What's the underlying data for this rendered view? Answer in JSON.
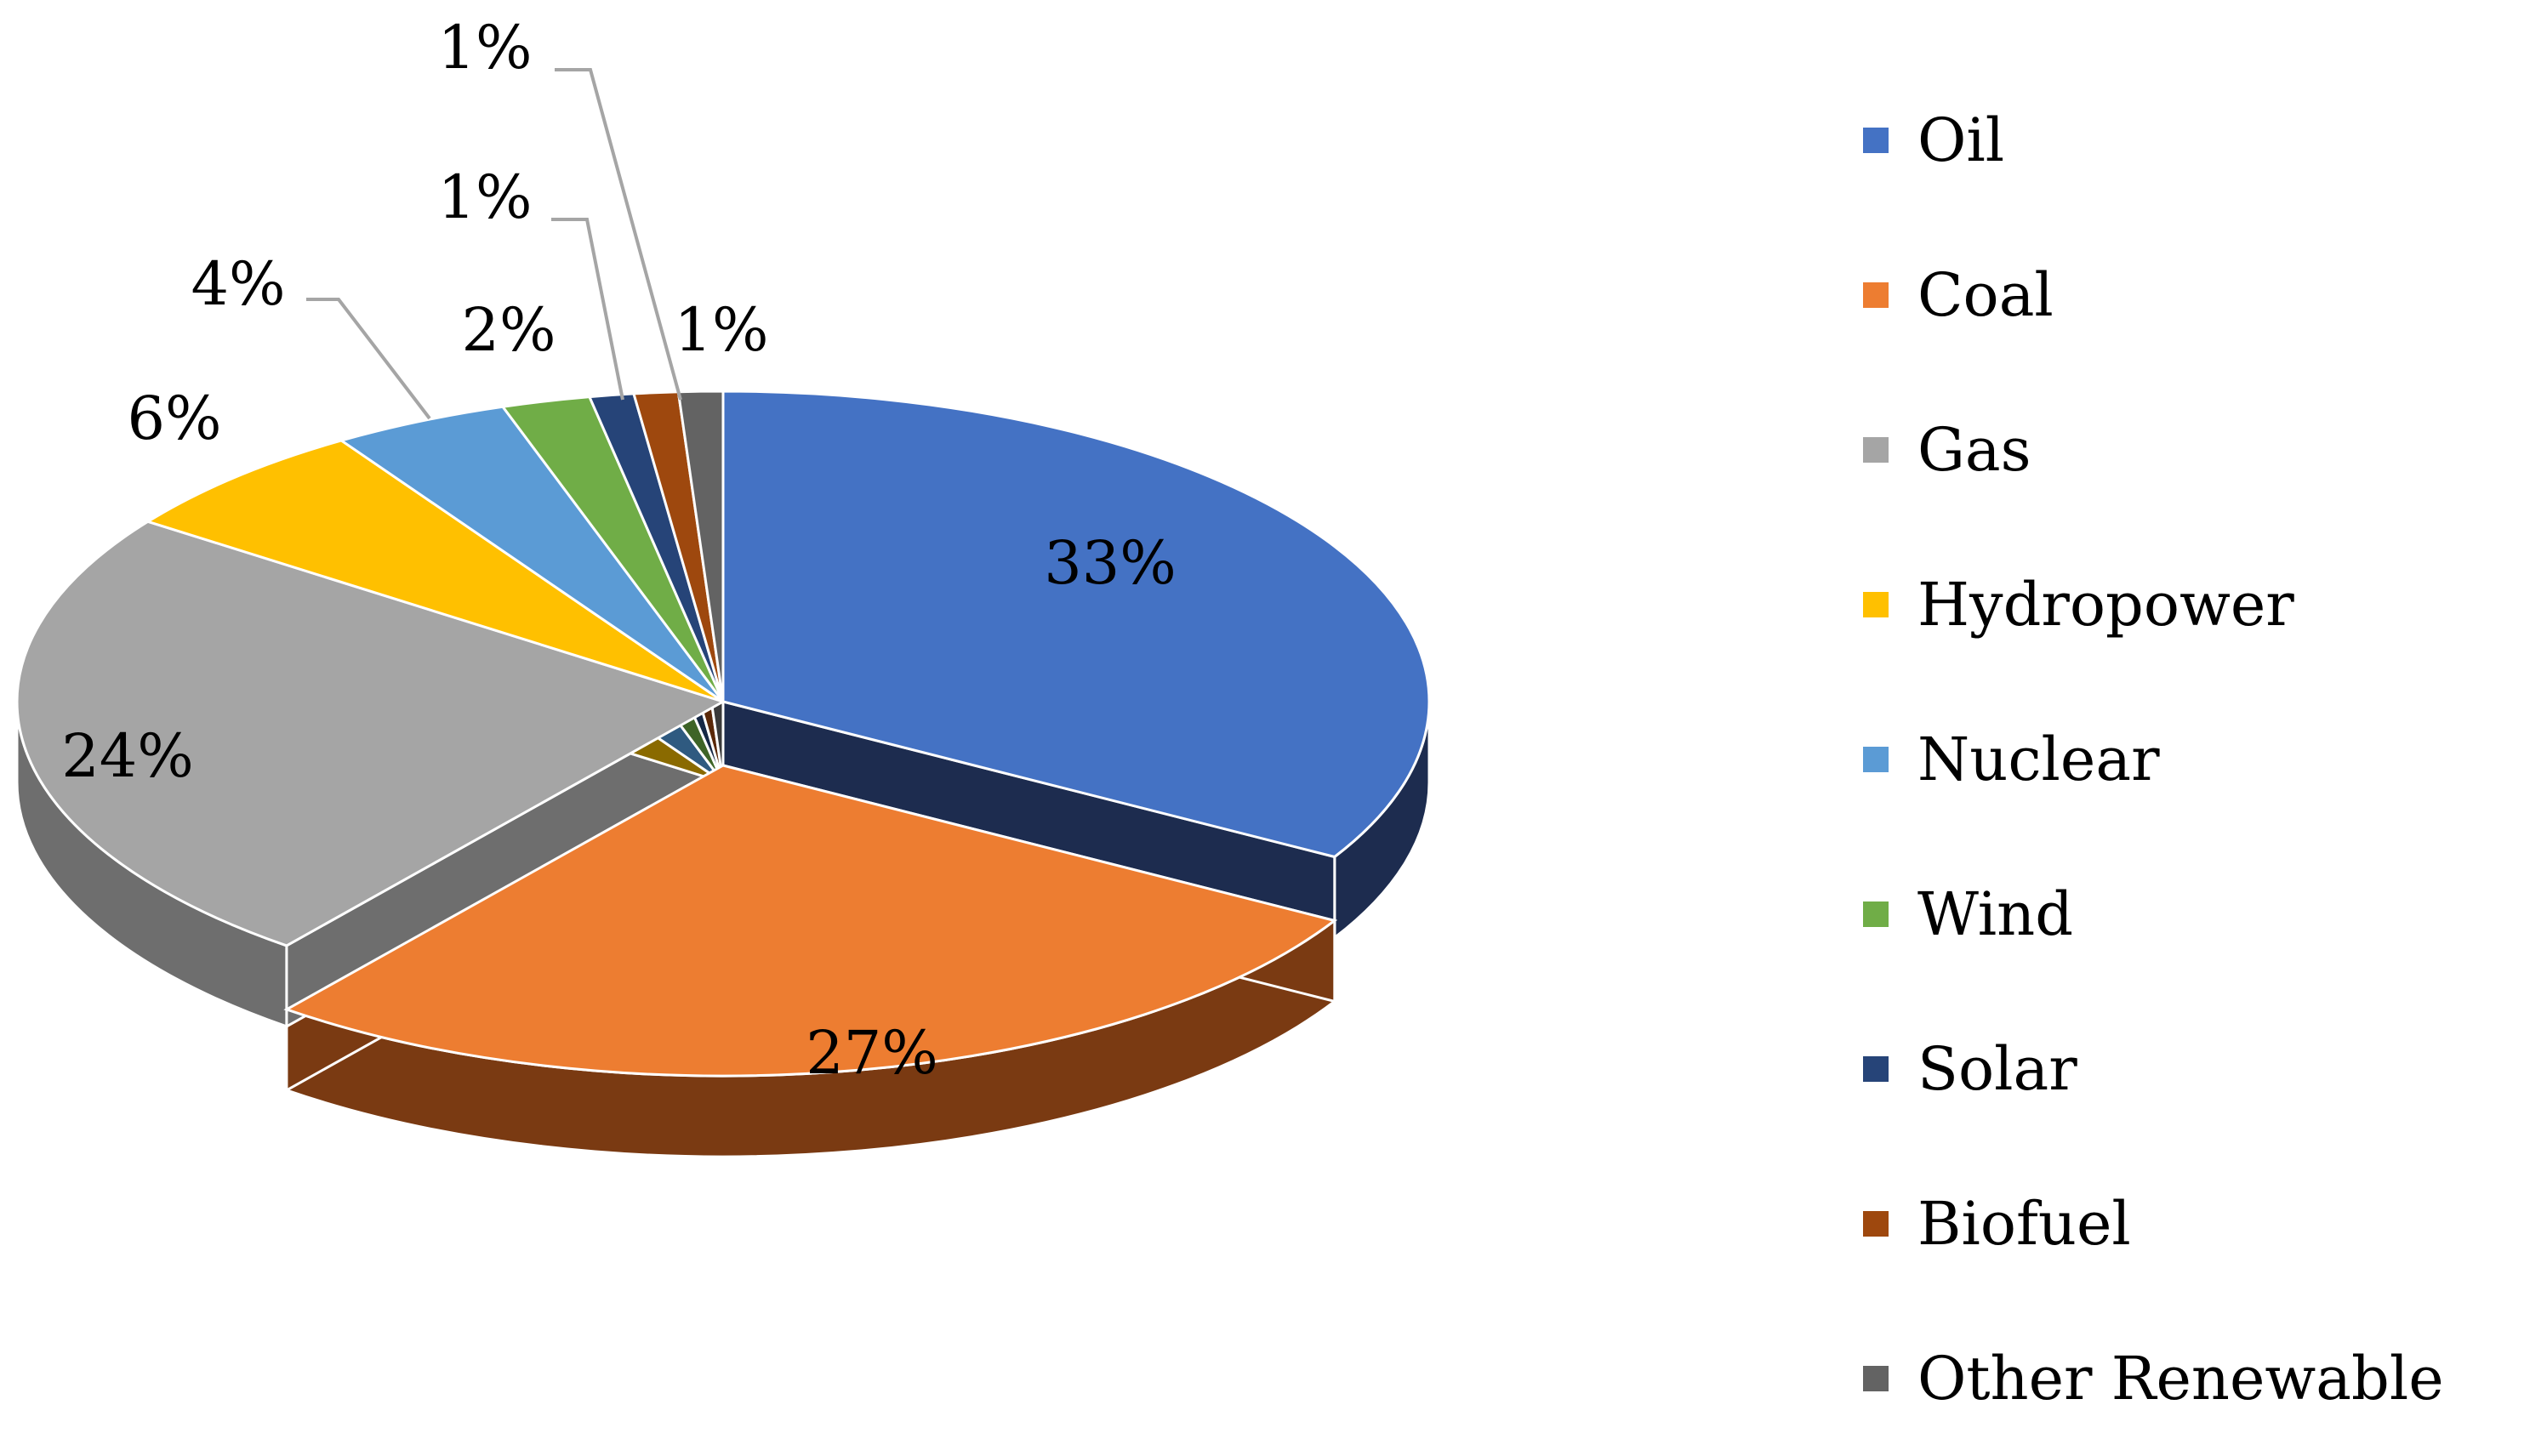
{
  "chart_data": {
    "type": "pie",
    "title": "",
    "slices": [
      {
        "label": "Oil",
        "value": 33,
        "display": "33%",
        "color": "#4472c4",
        "side": "#1d2c4f"
      },
      {
        "label": "Coal",
        "value": 27,
        "display": "27%",
        "color": "#ed7d31",
        "side": "#7a3a12"
      },
      {
        "label": "Gas",
        "value": 24,
        "display": "24%",
        "color": "#a5a5a5",
        "side": "#6e6e6e"
      },
      {
        "label": "Hydropower",
        "value": 6,
        "display": "6%",
        "color": "#ffc000",
        "side": "#8a6a00"
      },
      {
        "label": "Nuclear",
        "value": 4,
        "display": "4%",
        "color": "#5b9bd5",
        "side": "#2f5a80"
      },
      {
        "label": "Wind",
        "value": 2,
        "display": "2%",
        "color": "#70ad47",
        "side": "#3e6427"
      },
      {
        "label": "Solar",
        "value": 1,
        "display": "1%",
        "color": "#264478",
        "side": "#152745"
      },
      {
        "label": "Biofuel",
        "value": 1,
        "display": "1%",
        "color": "#9e480e",
        "side": "#5a2808"
      },
      {
        "label": "Other Renewable",
        "value": 1,
        "display": "1%",
        "color": "#636363",
        "side": "#3a3a3a"
      }
    ],
    "legend_position": "right",
    "style": "3d-exploded"
  }
}
